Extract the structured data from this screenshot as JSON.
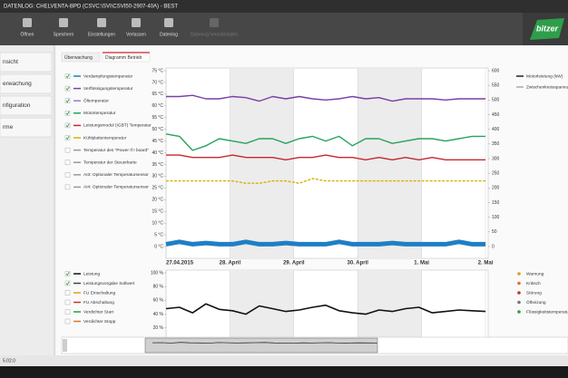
{
  "window": {
    "title": "DATENLOG: CHELVENTA-BPD (CSVC:\\SVI\\CSVI50-2907-40A) - BEST",
    "toolbar": [
      "Öffnen",
      "Speichern",
      "Einstellungen",
      "Verlassen",
      "Datenlog",
      "Datenlog herunterladen"
    ],
    "logo": "bitzer",
    "nav": [
      "nsicht",
      "erwachung",
      "nfiguration",
      "rme"
    ],
    "tabs": [
      "Überwachung",
      "Diagramm Betrieb"
    ],
    "active_tab": 1,
    "status": "5.02.0"
  },
  "chart_top": {
    "type": "line",
    "x": [
      0,
      5,
      10,
      15,
      20,
      25,
      30,
      35,
      40,
      45,
      50,
      55,
      60,
      65,
      70,
      75,
      80,
      85,
      90,
      95,
      100,
      105,
      110,
      115,
      120
    ],
    "xlim": [
      0,
      121
    ],
    "xticks": [
      {
        "value": 0,
        "label": "27.04.2015"
      },
      {
        "value": 24,
        "label": "28. April"
      },
      {
        "value": 48,
        "label": "29. April"
      },
      {
        "value": 72,
        "label": "30. April"
      },
      {
        "value": 96,
        "label": "1. Mai"
      },
      {
        "value": 120,
        "label": "2. Mai"
      }
    ],
    "ylim": [
      0,
      75
    ],
    "yticks": [
      {
        "value": 75,
        "label": "75 °C"
      },
      {
        "value": 70,
        "label": "70 °C"
      },
      {
        "value": 65,
        "label": "65 °C"
      },
      {
        "value": 60,
        "label": "60 °C"
      },
      {
        "value": 55,
        "label": "55 °C"
      },
      {
        "value": 50,
        "label": "50 °C"
      },
      {
        "value": 45,
        "label": "45 °C"
      },
      {
        "value": 40,
        "label": "40 °C"
      },
      {
        "value": 35,
        "label": "35 °C"
      },
      {
        "value": 30,
        "label": "30 °C"
      },
      {
        "value": 25,
        "label": "25 °C"
      },
      {
        "value": 20,
        "label": "20 °C"
      },
      {
        "value": 15,
        "label": "15 °C"
      },
      {
        "value": 10,
        "label": "10 °C"
      },
      {
        "value": 5,
        "label": "5 °C"
      },
      {
        "value": 0,
        "label": "0 °C"
      }
    ],
    "y2lim": [
      0,
      600
    ],
    "y2ticks": [
      600,
      550,
      500,
      450,
      400,
      350,
      300,
      250,
      200,
      150,
      100,
      50,
      0
    ],
    "series": [
      {
        "name": "Verdampfungstemperatur",
        "color": "#1f7fc4",
        "checked": true,
        "values": [
          1,
          2,
          1,
          1.5,
          1,
          1,
          2,
          1,
          1,
          1.5,
          1,
          1,
          1,
          2,
          1,
          1,
          1,
          1.5,
          1,
          1,
          1,
          1,
          2,
          1,
          1
        ]
      },
      {
        "name": "Verflüssigungstemperatur",
        "color": "#7a3fa6",
        "checked": true,
        "values": [
          64,
          64,
          64.5,
          63,
          63,
          64,
          63.5,
          62,
          64,
          63,
          64,
          63,
          62.5,
          63,
          64,
          63,
          63.5,
          62,
          63,
          63,
          63,
          62.5,
          63,
          63,
          63
        ]
      },
      {
        "name": "Öltemperatur",
        "color": "#9c7bc4",
        "checked": true
      },
      {
        "name": "Motortemperatur",
        "color": "#27a35a",
        "checked": true,
        "values": [
          48,
          47,
          41,
          43,
          46,
          45,
          44,
          46,
          46,
          44,
          46,
          47,
          45,
          47,
          43,
          46,
          46,
          44,
          45,
          46,
          46,
          45,
          46,
          47,
          47
        ]
      },
      {
        "name": "Leistungsmodul (IGBT) Temperatur",
        "color": "#c8282d",
        "checked": true,
        "values": [
          39,
          39,
          38,
          38,
          38,
          39,
          38,
          38,
          38,
          37,
          38,
          38,
          39,
          38,
          38,
          37,
          38,
          37,
          38,
          37,
          38,
          37,
          37,
          37,
          37
        ]
      },
      {
        "name": "Kühlplattentemperatur",
        "color": "#d6b400",
        "checked": true,
        "values": [
          28,
          28,
          28,
          28,
          28,
          28,
          27,
          27,
          28,
          28,
          27,
          29,
          28,
          28,
          28,
          28,
          28,
          28,
          28,
          28,
          28,
          28,
          28,
          28,
          28
        ]
      },
      {
        "name": "Temperatur des \"Power If I board\"",
        "color": "#999999",
        "checked": false
      },
      {
        "name": "Temperatur der Steuerkarte",
        "color": "#999999",
        "checked": false
      },
      {
        "name": "AI3: Optionaler Temperatursensor",
        "color": "#999999",
        "checked": false
      },
      {
        "name": "AI4: Optionaler Temperatursensor",
        "color": "#999999",
        "checked": false
      }
    ],
    "series2": [
      {
        "name": "Motorleistung (kW)",
        "color": "#222222",
        "axis": "y2"
      },
      {
        "name": "Zwischenkreisspannung (V)",
        "color": "#aaaaaa",
        "axis": "y2"
      }
    ]
  },
  "chart_bottom": {
    "type": "line",
    "ylim": [
      0,
      100
    ],
    "yticks": [
      {
        "value": 100,
        "label": "100 %"
      },
      {
        "value": 80,
        "label": "80 %"
      },
      {
        "value": 60,
        "label": "60 %"
      },
      {
        "value": 40,
        "label": "40 %"
      },
      {
        "value": 20,
        "label": "20 %"
      },
      {
        "value": 0,
        "label": "0 %"
      }
    ],
    "series": [
      {
        "name": "Leistung",
        "color": "#111111",
        "checked": true,
        "values": [
          48,
          50,
          42,
          55,
          47,
          45,
          40,
          52,
          48,
          44,
          46,
          50,
          53,
          45,
          42,
          40,
          46,
          44,
          48,
          50,
          42,
          44,
          46,
          45,
          44
        ]
      },
      {
        "name": "Leistungsvorgabe Sollwert",
        "color": "#444444",
        "checked": true
      },
      {
        "name": "FU Einschaltung",
        "color": "#e0a020",
        "checked": false
      },
      {
        "name": "FU Abschaltung",
        "color": "#c0392b",
        "checked": false
      },
      {
        "name": "Verdichter Start",
        "color": "#2e9e4a",
        "checked": false
      },
      {
        "name": "Verdichter Stopp",
        "color": "#d9772b",
        "checked": false
      }
    ],
    "events": [
      {
        "name": "Warnung",
        "color": "#e0a020"
      },
      {
        "name": "Kritisch",
        "color": "#d9772b"
      },
      {
        "name": "Störung",
        "color": "#c0392b"
      },
      {
        "name": "Ölheizung",
        "color": "#777777"
      },
      {
        "name": "Flüssigkeitstemperatur",
        "color": "#2e9e4a"
      }
    ]
  }
}
